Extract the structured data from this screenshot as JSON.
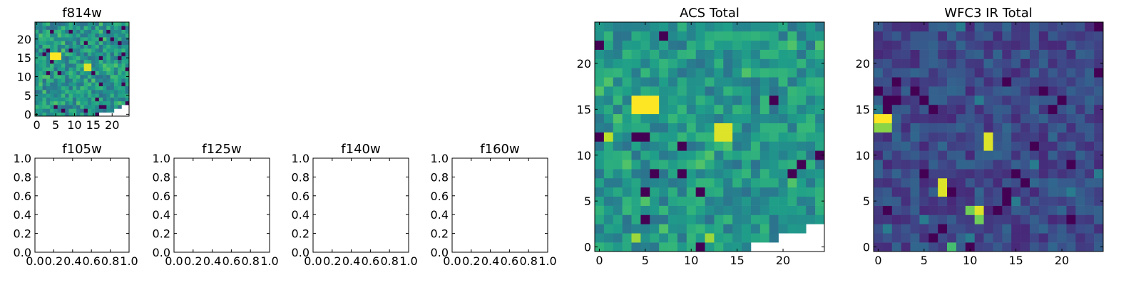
{
  "figure": {
    "background": "#ffffff"
  },
  "chart_data": [
    {
      "type": "heatmap",
      "title": "f814w",
      "xlim": [
        -0.5,
        24.5
      ],
      "ylim": [
        -0.5,
        24.5
      ],
      "xticks": [
        0,
        5,
        10,
        15,
        20
      ],
      "yticks": [
        0,
        5,
        10,
        15,
        20
      ],
      "grid": false,
      "colormap": "viridis",
      "features": [
        {
          "x": [
            4,
            6
          ],
          "y": [
            15,
            16
          ],
          "level": 1.0
        },
        {
          "x": [
            13,
            14
          ],
          "y": [
            12,
            13
          ],
          "level": 0.95
        }
      ],
      "masked": [
        {
          "x": [
            17,
            20
          ],
          "y": [
            -0.5,
            0.5
          ]
        },
        {
          "x": [
            21,
            22
          ],
          "y": [
            -0.5,
            1
          ]
        },
        {
          "x": [
            23,
            24
          ],
          "y": [
            -0.5,
            2
          ]
        }
      ]
    },
    {
      "type": "heatmap",
      "title": "ACS Total",
      "xlim": [
        -0.5,
        24.5
      ],
      "ylim": [
        -0.5,
        24.5
      ],
      "xticks": [
        0,
        5,
        10,
        15,
        20
      ],
      "yticks": [
        0,
        5,
        10,
        15,
        20
      ],
      "grid": false,
      "colormap": "viridis",
      "features": [
        {
          "x": [
            4,
            6
          ],
          "y": [
            15,
            16
          ],
          "level": 1.0
        },
        {
          "x": [
            13,
            14
          ],
          "y": [
            12,
            13
          ],
          "level": 0.95
        },
        {
          "x": [
            1,
            1
          ],
          "y": [
            12,
            12
          ],
          "level": 0.9
        },
        {
          "x": [
            12,
            12
          ],
          "y": [
            1,
            1
          ],
          "level": 0.85
        },
        {
          "x": [
            4,
            4
          ],
          "y": [
            1,
            1
          ],
          "level": 0.85
        }
      ],
      "masked": [
        {
          "x": [
            17,
            19
          ],
          "y": [
            -0.5,
            0.5
          ]
        },
        {
          "x": [
            20,
            22
          ],
          "y": [
            -0.5,
            1
          ]
        },
        {
          "x": [
            23,
            24
          ],
          "y": [
            -0.5,
            2
          ]
        }
      ]
    },
    {
      "type": "heatmap",
      "title": "WFC3 IR Total",
      "xlim": [
        -0.5,
        24.5
      ],
      "ylim": [
        -0.5,
        24.5
      ],
      "xticks": [
        0,
        5,
        10,
        15,
        20
      ],
      "yticks": [
        0,
        5,
        10,
        15,
        20
      ],
      "grid": false,
      "colormap": "viridis",
      "features": [
        {
          "x": [
            0,
            1
          ],
          "y": [
            14,
            14
          ],
          "level": 1.0
        },
        {
          "x": [
            0,
            1
          ],
          "y": [
            13,
            13
          ],
          "level": 0.82
        },
        {
          "x": [
            12,
            12
          ],
          "y": [
            11,
            12
          ],
          "level": 0.95
        },
        {
          "x": [
            7,
            7
          ],
          "y": [
            6,
            7
          ],
          "level": 0.95
        },
        {
          "x": [
            11,
            11
          ],
          "y": [
            4,
            4
          ],
          "level": 0.95
        },
        {
          "x": [
            10,
            10
          ],
          "y": [
            4,
            4
          ],
          "level": 0.78
        },
        {
          "x": [
            11,
            11
          ],
          "y": [
            3,
            3
          ],
          "level": 0.78
        },
        {
          "x": [
            8,
            8
          ],
          "y": [
            0,
            0
          ],
          "level": 0.7
        }
      ],
      "masked": []
    },
    {
      "type": "empty",
      "title": "f105w",
      "xlim": [
        0,
        1
      ],
      "ylim": [
        0,
        1
      ],
      "xticks": [
        "0.0",
        "0.2",
        "0.4",
        "0.6",
        "0.8",
        "1.0"
      ],
      "yticks": [
        "0.0",
        "0.2",
        "0.4",
        "0.6",
        "0.8",
        "1.0"
      ]
    },
    {
      "type": "empty",
      "title": "f125w",
      "xlim": [
        0,
        1
      ],
      "ylim": [
        0,
        1
      ],
      "xticks": [
        "0.0",
        "0.2",
        "0.4",
        "0.6",
        "0.8",
        "1.0"
      ],
      "yticks": [
        "0.0",
        "0.2",
        "0.4",
        "0.6",
        "0.8",
        "1.0"
      ]
    },
    {
      "type": "empty",
      "title": "f140w",
      "xlim": [
        0,
        1
      ],
      "ylim": [
        0,
        1
      ],
      "xticks": [
        "0.0",
        "0.2",
        "0.4",
        "0.6",
        "0.8",
        "1.0"
      ],
      "yticks": [
        "0.0",
        "0.2",
        "0.4",
        "0.6",
        "0.8",
        "1.0"
      ]
    },
    {
      "type": "empty",
      "title": "f160w",
      "xlim": [
        0,
        1
      ],
      "ylim": [
        0,
        1
      ],
      "xticks": [
        "0.0",
        "0.2",
        "0.4",
        "0.6",
        "0.8",
        "1.0"
      ],
      "yticks": [
        "0.0",
        "0.2",
        "0.4",
        "0.6",
        "0.8",
        "1.0"
      ]
    }
  ]
}
